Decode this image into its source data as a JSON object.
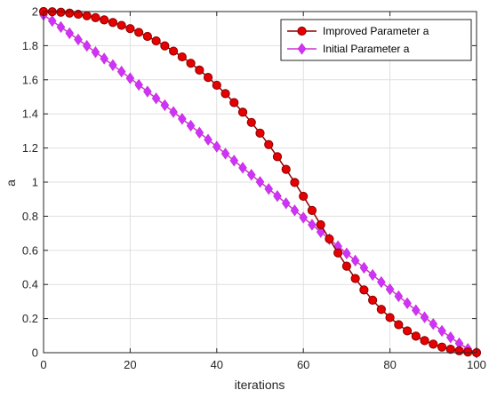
{
  "chart_data": {
    "type": "line",
    "title": "",
    "xlabel": "iterations",
    "ylabel": "a",
    "xlim": [
      0,
      100
    ],
    "ylim": [
      0,
      2
    ],
    "xticks": [
      0,
      20,
      40,
      60,
      80,
      100
    ],
    "yticks": [
      0,
      0.2,
      0.4,
      0.6,
      0.8,
      1,
      1.2,
      1.4,
      1.6,
      1.8,
      2
    ],
    "grid": true,
    "legend_location": "top-right",
    "series": [
      {
        "name": "Improved Parameter a",
        "color": "#8B0000",
        "marker": "circle",
        "marker_color": "#e60000",
        "x": [
          0,
          2,
          4,
          6,
          8,
          10,
          12,
          14,
          16,
          18,
          20,
          22,
          24,
          26,
          28,
          30,
          32,
          34,
          36,
          38,
          40,
          42,
          44,
          46,
          48,
          50,
          52,
          54,
          56,
          58,
          60,
          62,
          64,
          66,
          68,
          70,
          72,
          74,
          76,
          78,
          80,
          82,
          84,
          86,
          88,
          90,
          92,
          94,
          96,
          98,
          100
        ],
        "values": [
          2.0,
          1.999,
          1.996,
          1.991,
          1.984,
          1.975,
          1.964,
          1.951,
          1.936,
          1.919,
          1.9,
          1.878,
          1.854,
          1.828,
          1.799,
          1.768,
          1.734,
          1.697,
          1.657,
          1.614,
          1.568,
          1.519,
          1.466,
          1.41,
          1.35,
          1.287,
          1.22,
          1.149,
          1.075,
          0.998,
          0.917,
          0.834,
          0.75,
          0.667,
          0.585,
          0.507,
          0.435,
          0.368,
          0.308,
          0.254,
          0.206,
          0.164,
          0.128,
          0.097,
          0.071,
          0.05,
          0.033,
          0.02,
          0.011,
          0.004,
          0.0
        ]
      },
      {
        "name": "Initial Parameter a",
        "color": "#CC33CC",
        "marker": "diamond",
        "marker_color": "#CC33FF",
        "x": [
          0,
          2,
          4,
          6,
          8,
          10,
          12,
          14,
          16,
          18,
          20,
          22,
          24,
          26,
          28,
          30,
          32,
          34,
          36,
          38,
          40,
          42,
          44,
          46,
          48,
          50,
          52,
          54,
          56,
          58,
          60,
          62,
          64,
          66,
          68,
          70,
          72,
          74,
          76,
          78,
          80,
          82,
          84,
          86,
          88,
          90,
          92,
          94,
          96,
          98,
          100
        ],
        "values": [
          1.98,
          1.945,
          1.909,
          1.873,
          1.836,
          1.799,
          1.762,
          1.724,
          1.686,
          1.648,
          1.609,
          1.57,
          1.531,
          1.491,
          1.451,
          1.411,
          1.371,
          1.331,
          1.29,
          1.249,
          1.208,
          1.167,
          1.126,
          1.084,
          1.043,
          1.001,
          0.96,
          0.918,
          0.876,
          0.834,
          0.792,
          0.75,
          0.708,
          0.666,
          0.624,
          0.582,
          0.54,
          0.498,
          0.456,
          0.414,
          0.372,
          0.331,
          0.29,
          0.249,
          0.208,
          0.168,
          0.128,
          0.09,
          0.055,
          0.022,
          0.0
        ]
      }
    ]
  }
}
